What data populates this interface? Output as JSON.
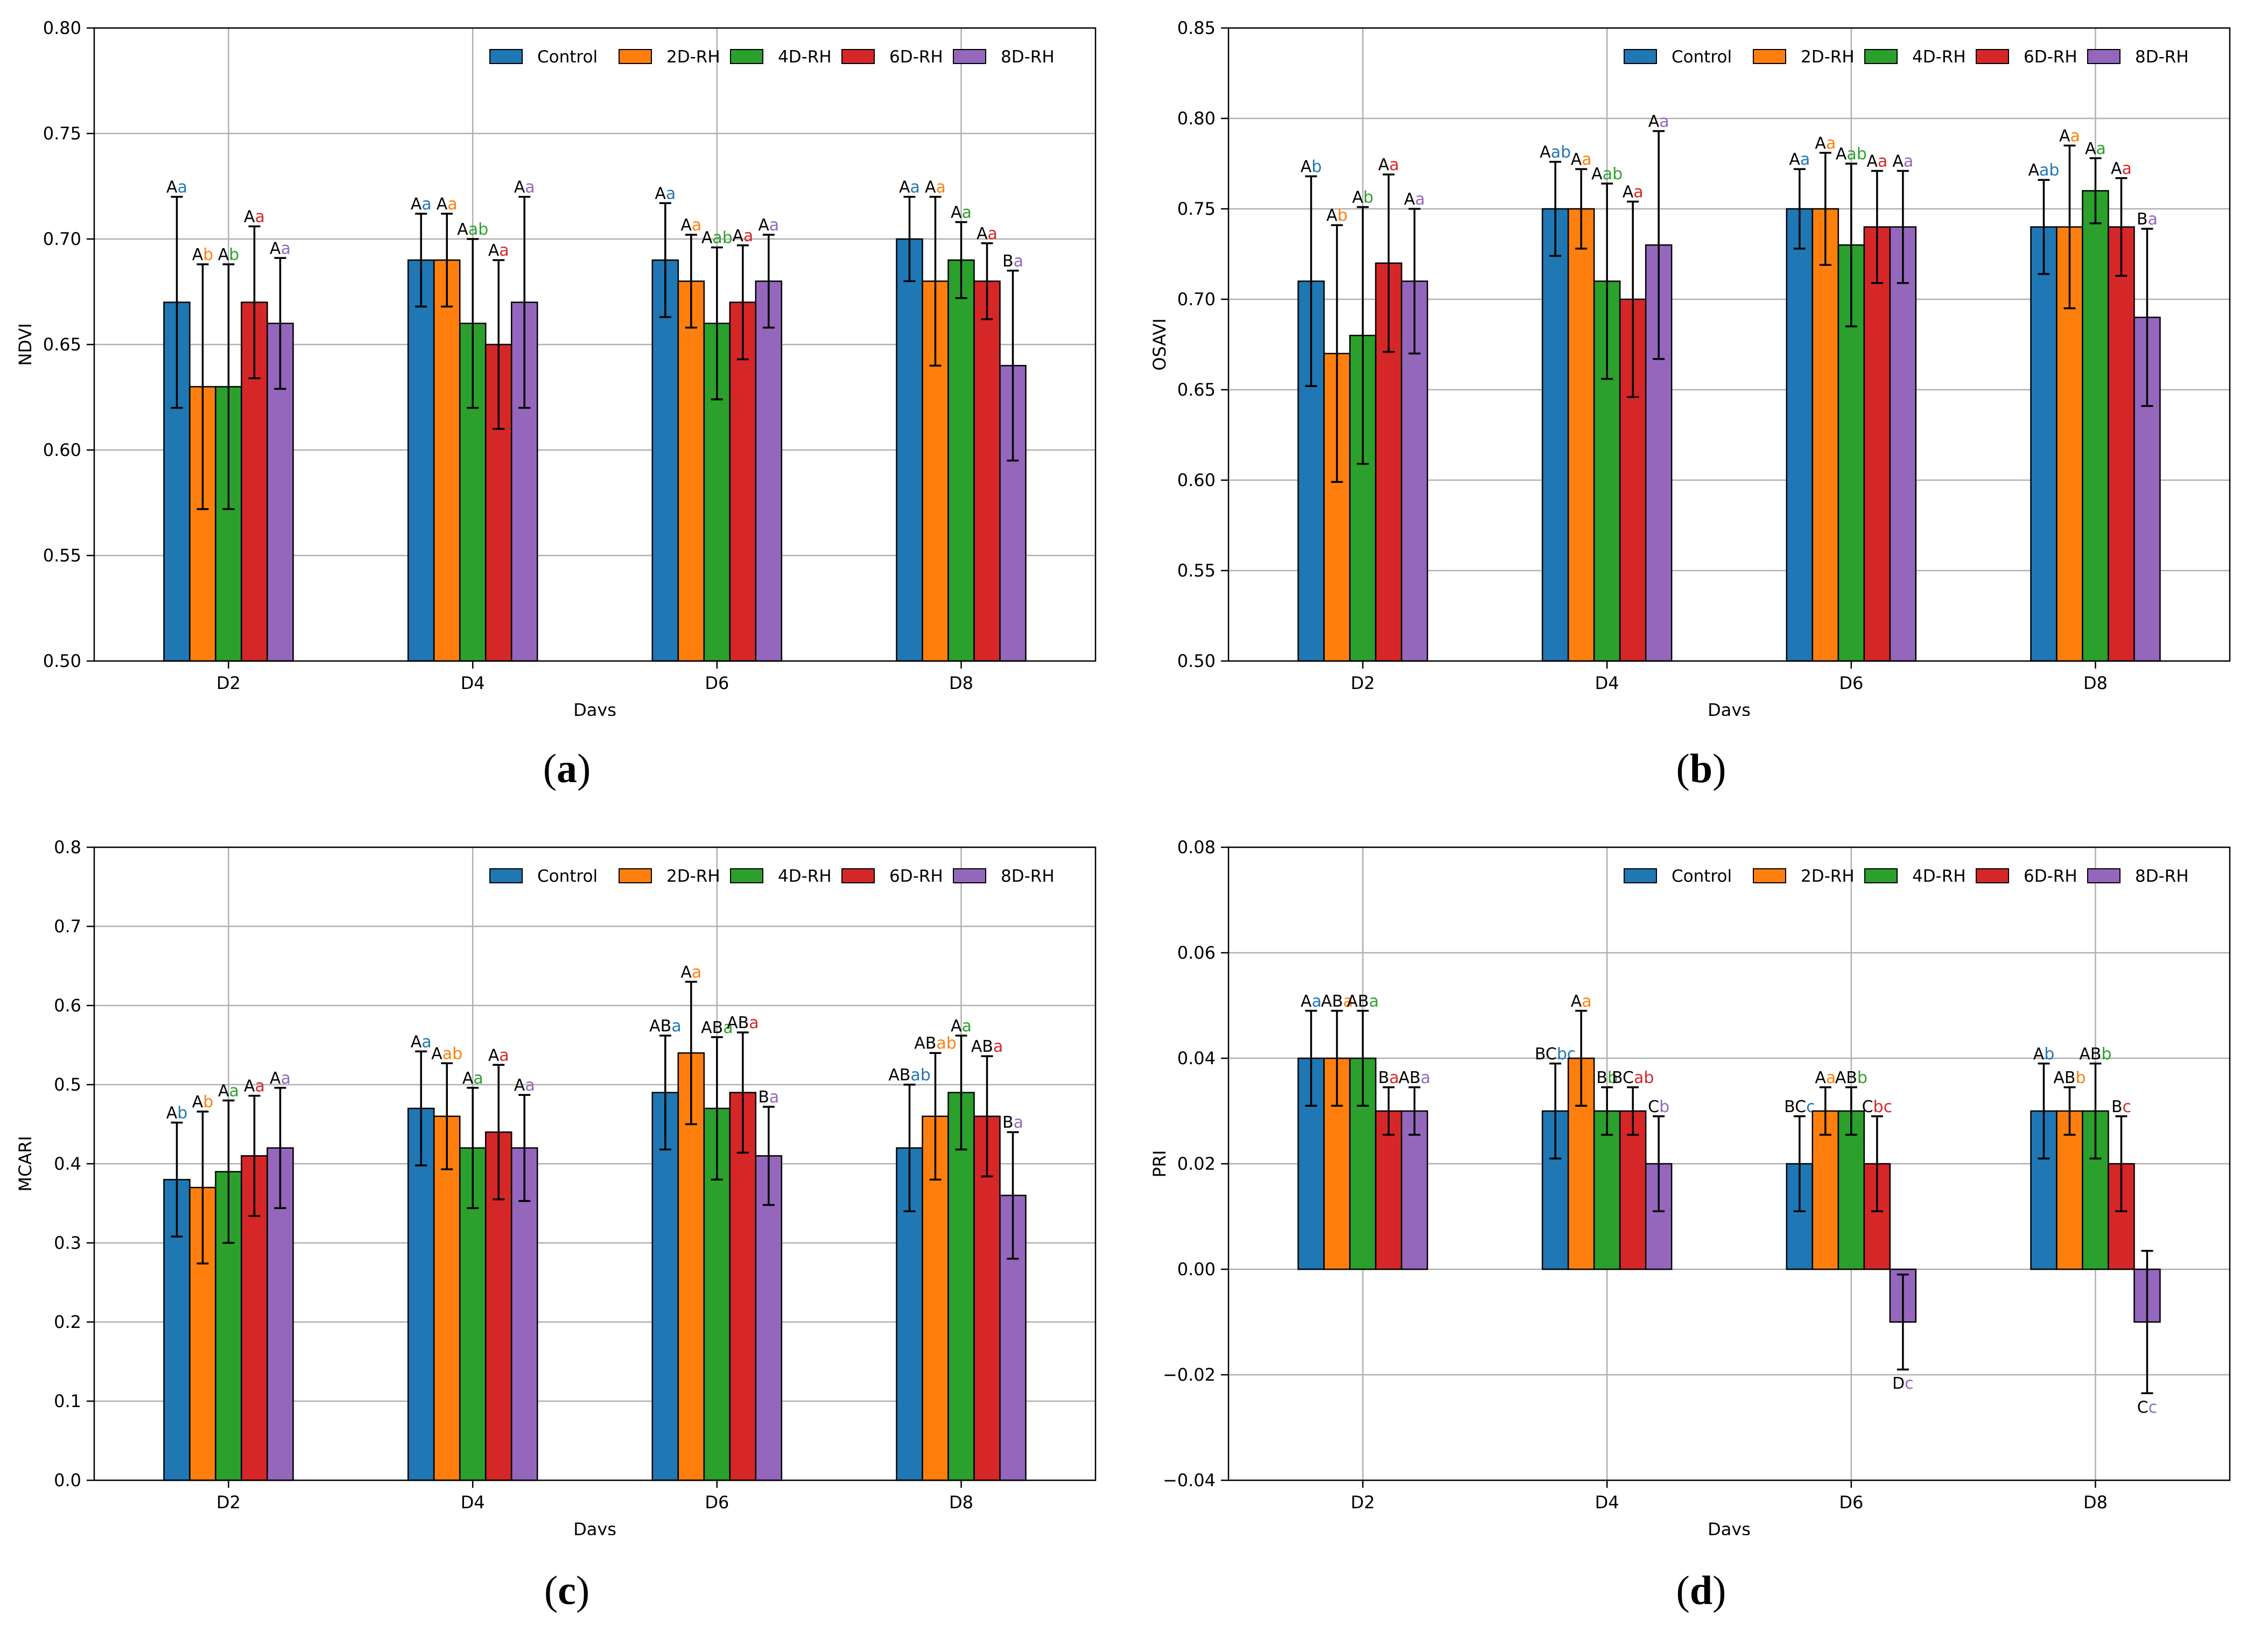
{
  "colors": {
    "Control": "#1f77b4",
    "2D-RH": "#ff7f0e",
    "4D-RH": "#2ca02c",
    "6D-RH": "#d62728",
    "8D-RH": "#9467bd"
  },
  "chart_data": [
    {
      "panel_label": "a",
      "type": "bar",
      "title": "",
      "xlabel": "Days",
      "ylabel": "NDVI",
      "ylim": [
        0.5,
        0.8
      ],
      "yticks": [
        "0.50",
        "0.55",
        "0.60",
        "0.65",
        "0.70",
        "0.75",
        "0.80"
      ],
      "categories": [
        "D2",
        "D4",
        "D6",
        "D8"
      ],
      "grid": true,
      "legend": "top-right",
      "series": [
        {
          "name": "Control",
          "values": [
            0.67,
            0.69,
            0.69,
            0.7
          ],
          "errors": [
            0.05,
            0.022,
            0.027,
            0.02
          ],
          "caps": [
            "A",
            "A",
            "A",
            "A"
          ],
          "lows": [
            "a",
            "a",
            "a",
            "a"
          ]
        },
        {
          "name": "2D-RH",
          "values": [
            0.63,
            0.69,
            0.68,
            0.68
          ],
          "errors": [
            0.058,
            0.022,
            0.022,
            0.04
          ],
          "caps": [
            "A",
            "A",
            "A",
            "A"
          ],
          "lows": [
            "b",
            "a",
            "a",
            "a"
          ]
        },
        {
          "name": "4D-RH",
          "values": [
            0.63,
            0.66,
            0.66,
            0.69
          ],
          "errors": [
            0.058,
            0.04,
            0.036,
            0.018
          ],
          "caps": [
            "A",
            "A",
            "A",
            "A"
          ],
          "lows": [
            "b",
            "ab",
            "ab",
            "a"
          ]
        },
        {
          "name": "6D-RH",
          "values": [
            0.67,
            0.65,
            0.67,
            0.68
          ],
          "errors": [
            0.036,
            0.04,
            0.027,
            0.018
          ],
          "caps": [
            "A",
            "A",
            "A",
            "A"
          ],
          "lows": [
            "a",
            "a",
            "a",
            "a"
          ]
        },
        {
          "name": "8D-RH",
          "values": [
            0.66,
            0.67,
            0.68,
            0.64
          ],
          "errors": [
            0.031,
            0.05,
            0.022,
            0.045
          ],
          "caps": [
            "A",
            "A",
            "A",
            "B"
          ],
          "lows": [
            "a",
            "a",
            "a",
            "a"
          ]
        }
      ]
    },
    {
      "panel_label": "b",
      "type": "bar",
      "title": "",
      "xlabel": "Days",
      "ylabel": "OSAVI",
      "ylim": [
        0.5,
        0.85
      ],
      "yticks": [
        "0.50",
        "0.55",
        "0.60",
        "0.65",
        "0.70",
        "0.75",
        "0.80",
        "0.85"
      ],
      "categories": [
        "D2",
        "D4",
        "D6",
        "D8"
      ],
      "grid": true,
      "legend": "top-right",
      "series": [
        {
          "name": "Control",
          "values": [
            0.71,
            0.75,
            0.75,
            0.74
          ],
          "errors": [
            0.058,
            0.026,
            0.022,
            0.026
          ],
          "caps": [
            "A",
            "A",
            "A",
            "A"
          ],
          "lows": [
            "b",
            "ab",
            "a",
            "ab"
          ]
        },
        {
          "name": "2D-RH",
          "values": [
            0.67,
            0.75,
            0.75,
            0.74
          ],
          "errors": [
            0.071,
            0.022,
            0.031,
            0.045
          ],
          "caps": [
            "A",
            "A",
            "A",
            "A"
          ],
          "lows": [
            "b",
            "a",
            "a",
            "a"
          ]
        },
        {
          "name": "4D-RH",
          "values": [
            0.68,
            0.71,
            0.73,
            0.76
          ],
          "errors": [
            0.071,
            0.054,
            0.045,
            0.018
          ],
          "caps": [
            "A",
            "A",
            "A",
            "A"
          ],
          "lows": [
            "b",
            "ab",
            "ab",
            "a"
          ]
        },
        {
          "name": "6D-RH",
          "values": [
            0.72,
            0.7,
            0.74,
            0.74
          ],
          "errors": [
            0.049,
            0.054,
            0.031,
            0.027
          ],
          "caps": [
            "A",
            "A",
            "A",
            "A"
          ],
          "lows": [
            "a",
            "a",
            "a",
            "a"
          ]
        },
        {
          "name": "8D-RH",
          "values": [
            0.71,
            0.73,
            0.74,
            0.69
          ],
          "errors": [
            0.04,
            0.063,
            0.031,
            0.049
          ],
          "caps": [
            "A",
            "A",
            "A",
            "B"
          ],
          "lows": [
            "a",
            "a",
            "a",
            "a"
          ]
        }
      ]
    },
    {
      "panel_label": "c",
      "type": "bar",
      "title": "",
      "xlabel": "Days",
      "ylabel": "MCARI",
      "ylim": [
        0.0,
        0.8
      ],
      "yticks": [
        "0.0",
        "0.1",
        "0.2",
        "0.3",
        "0.4",
        "0.5",
        "0.6",
        "0.7",
        "0.8"
      ],
      "categories": [
        "D2",
        "D4",
        "D6",
        "D8"
      ],
      "grid": true,
      "legend": "top-right",
      "series": [
        {
          "name": "Control",
          "values": [
            0.38,
            0.47,
            0.49,
            0.42
          ],
          "errors": [
            0.072,
            0.072,
            0.072,
            0.08
          ],
          "caps": [
            "A",
            "A",
            "AB",
            "AB"
          ],
          "lows": [
            "b",
            "a",
            "a",
            "ab"
          ]
        },
        {
          "name": "2D-RH",
          "values": [
            0.37,
            0.46,
            0.54,
            0.46
          ],
          "errors": [
            0.096,
            0.067,
            0.09,
            0.08
          ],
          "caps": [
            "A",
            "A",
            "A",
            "AB"
          ],
          "lows": [
            "b",
            "ab",
            "a",
            "ab"
          ]
        },
        {
          "name": "4D-RH",
          "values": [
            0.39,
            0.42,
            0.47,
            0.49
          ],
          "errors": [
            0.09,
            0.076,
            0.09,
            0.072
          ],
          "caps": [
            "A",
            "A",
            "AB",
            "A"
          ],
          "lows": [
            "a",
            "a",
            "a",
            "a"
          ]
        },
        {
          "name": "6D-RH",
          "values": [
            0.41,
            0.44,
            0.49,
            0.46
          ],
          "errors": [
            0.076,
            0.085,
            0.076,
            0.076
          ],
          "caps": [
            "A",
            "A",
            "AB",
            "AB"
          ],
          "lows": [
            "a",
            "a",
            "a",
            "a"
          ]
        },
        {
          "name": "8D-RH",
          "values": [
            0.42,
            0.42,
            0.41,
            0.36
          ],
          "errors": [
            0.076,
            0.067,
            0.062,
            0.08
          ],
          "caps": [
            "A",
            "A",
            "B",
            "B"
          ],
          "lows": [
            "a",
            "a",
            "a",
            "a"
          ]
        }
      ]
    },
    {
      "panel_label": "d",
      "type": "bar",
      "title": "",
      "xlabel": "Days",
      "ylabel": "PRI",
      "ylim": [
        -0.04,
        0.08
      ],
      "yticks": [
        "−0.04",
        "−0.02",
        "0.00",
        "0.02",
        "0.04",
        "0.06",
        "0.08"
      ],
      "categories": [
        "D2",
        "D4",
        "D6",
        "D8"
      ],
      "grid": true,
      "legend": "top-right",
      "series": [
        {
          "name": "Control",
          "values": [
            0.04,
            0.03,
            0.02,
            0.03
          ],
          "errors": [
            0.009,
            0.009,
            0.009,
            0.009
          ],
          "caps": [
            "A",
            "BC",
            "BC",
            "A"
          ],
          "lows": [
            "a",
            "bc",
            "c",
            "b"
          ]
        },
        {
          "name": "2D-RH",
          "values": [
            0.04,
            0.04,
            0.03,
            0.03
          ],
          "errors": [
            0.009,
            0.009,
            0.0045,
            0.0045
          ],
          "caps": [
            "AB",
            "A",
            "A",
            "AB"
          ],
          "lows": [
            "a",
            "a",
            "a",
            "b"
          ]
        },
        {
          "name": "4D-RH",
          "values": [
            0.04,
            0.03,
            0.03,
            0.03
          ],
          "errors": [
            0.009,
            0.0045,
            0.0045,
            0.009
          ],
          "caps": [
            "AB",
            "B",
            "AB",
            "AB"
          ],
          "lows": [
            "a",
            "b",
            "b",
            "b"
          ]
        },
        {
          "name": "6D-RH",
          "values": [
            0.03,
            0.03,
            0.02,
            0.02
          ],
          "errors": [
            0.0045,
            0.0045,
            0.009,
            0.009
          ],
          "caps": [
            "B",
            "BC",
            "C",
            "B"
          ],
          "lows": [
            "a",
            "ab",
            "bc",
            "c"
          ]
        },
        {
          "name": "8D-RH",
          "values": [
            0.03,
            0.02,
            -0.01,
            -0.01
          ],
          "errors": [
            0.0045,
            0.009,
            0.009,
            0.0135
          ],
          "caps": [
            "AB",
            "C",
            "D",
            "C"
          ],
          "lows": [
            "a",
            "b",
            "c",
            "c"
          ]
        }
      ]
    }
  ]
}
